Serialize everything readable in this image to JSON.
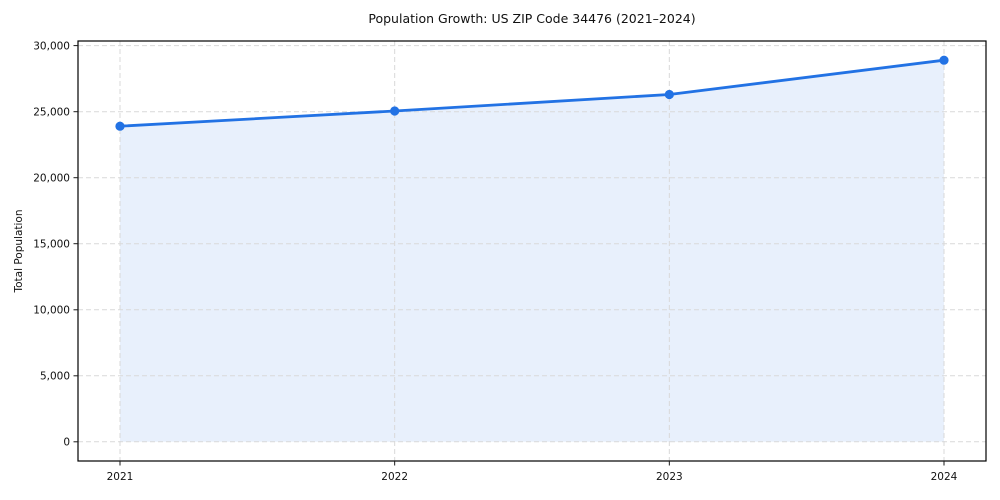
{
  "chart_data": {
    "type": "area",
    "title": "Population Growth: US ZIP Code 34476 (2021–2024)",
    "xlabel": "",
    "ylabel": "Total Population",
    "categories": [
      "2021",
      "2022",
      "2023",
      "2024"
    ],
    "series": [
      {
        "name": "Total Population",
        "values": [
          23900,
          25050,
          26300,
          28900
        ]
      }
    ],
    "yticks": [
      0,
      5000,
      10000,
      15000,
      20000,
      25000,
      30000
    ],
    "ytick_labels": [
      "0",
      "5,000",
      "10,000",
      "15,000",
      "20,000",
      "25,000",
      "30,000"
    ],
    "ylim": [
      -1450,
      30350
    ],
    "fill_baseline": 0,
    "grid": {
      "visible": true,
      "style": "dashed",
      "color": "#d9d9d9"
    },
    "legend_position": "none",
    "colors": {
      "line": "#2272e4",
      "marker": "#2272e4",
      "area_fill": "#e8f0fc",
      "spine": "#000000",
      "tick": "#1a1a1a",
      "text": "#111111",
      "background": "#ffffff"
    }
  }
}
